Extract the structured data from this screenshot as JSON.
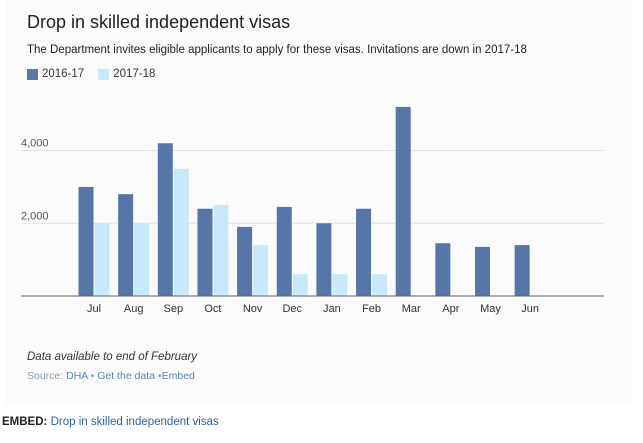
{
  "header": {
    "title": "Drop in skilled independent visas",
    "subtitle": "The Department invites eligible applicants to apply for these visas. Invitations are down in 2017-18"
  },
  "colors": {
    "series_2016": "#5676a8",
    "series_2017": "#c8e8fb",
    "grid": "#e2e2e2",
    "axis": "#666666"
  },
  "chart_data": {
    "type": "bar",
    "categories": [
      "Jul",
      "Aug",
      "Sep",
      "Oct",
      "Nov",
      "Dec",
      "Jan",
      "Feb",
      "Mar",
      "Apr",
      "May",
      "Jun"
    ],
    "series": [
      {
        "name": "2016-17",
        "values": [
          3000,
          2800,
          4200,
          2400,
          1900,
          2450,
          2000,
          2400,
          5200,
          1450,
          1350,
          1400
        ]
      },
      {
        "name": "2017-18",
        "values": [
          2000,
          2000,
          3500,
          2500,
          1400,
          600,
          600,
          600,
          null,
          null,
          null,
          null
        ]
      }
    ],
    "y_ticks": [
      2000,
      4000
    ],
    "y_tick_labels": [
      "2,000",
      "4,000"
    ],
    "ylim": [
      0,
      5500
    ],
    "grid": true,
    "legend_position": "top-left",
    "title": "Drop in skilled independent visas",
    "xlabel": "",
    "ylabel": ""
  },
  "footer": {
    "note": "Data available to end of February",
    "source_prefix": "Source: ",
    "source_link": "DHA",
    "separator": " • ",
    "get_data": "Get the data",
    "separator2": " •",
    "embed_link": "Embed"
  },
  "embed": {
    "label": "EMBED:",
    "link": "Drop in skilled independent visas"
  }
}
